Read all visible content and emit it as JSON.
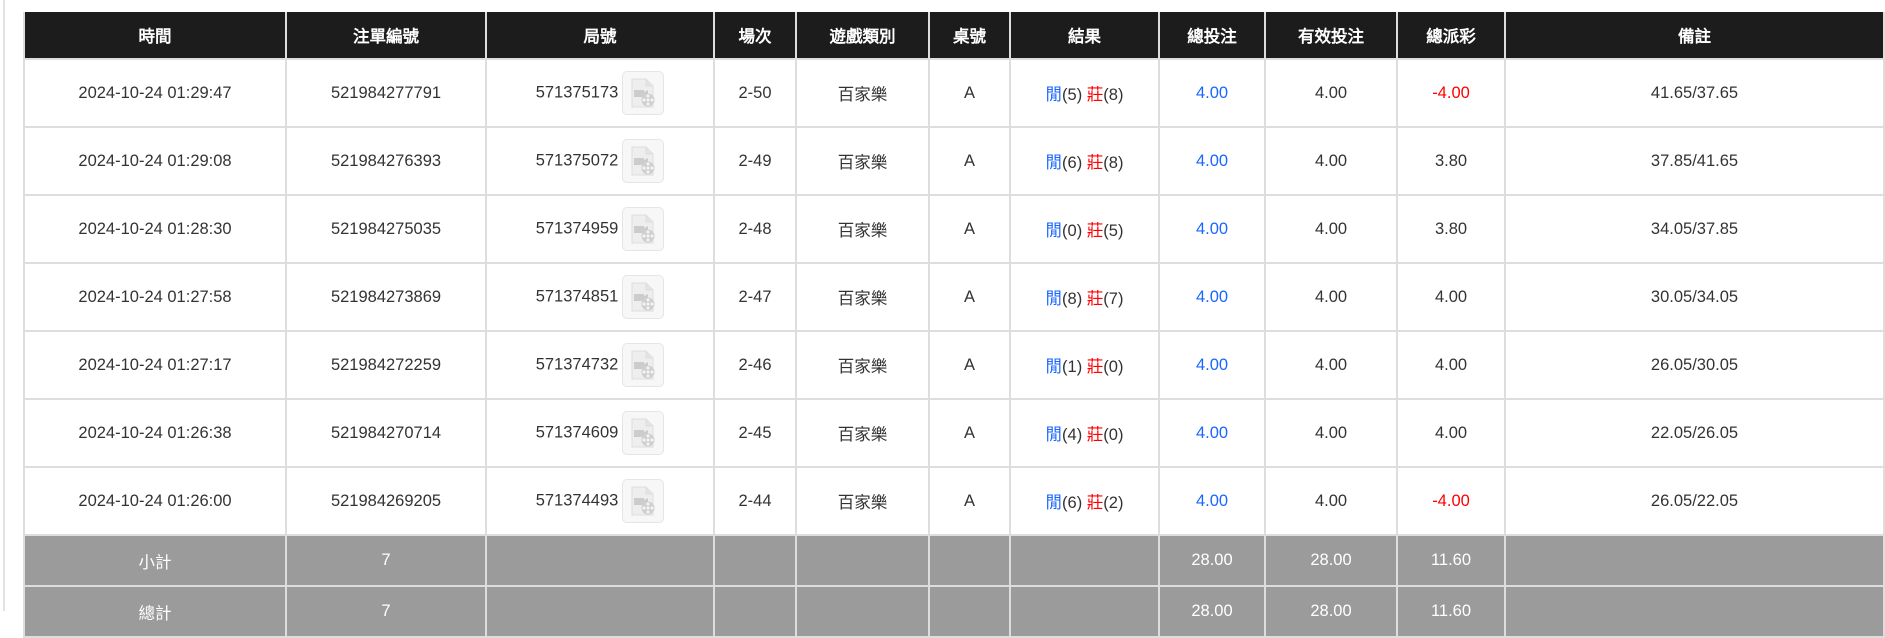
{
  "headers": [
    "時間",
    "注單編號",
    "局號",
    "場次",
    "遊戲類別",
    "桌號",
    "結果",
    "總投注",
    "有效投注",
    "總派彩",
    "備註"
  ],
  "rows": [
    {
      "time": "2024-10-24 01:29:47",
      "bet_id": "521984277791",
      "round": "571375173",
      "session": "2-50",
      "game": "百家樂",
      "table": "A",
      "player_label": "閒",
      "player_score": "(5)",
      "banker_label": "莊",
      "banker_score": "(8)",
      "total_bet": "4.00",
      "valid_bet": "4.00",
      "payout": "-4.00",
      "payout_negative": true,
      "note": "41.65/37.65"
    },
    {
      "time": "2024-10-24 01:29:08",
      "bet_id": "521984276393",
      "round": "571375072",
      "session": "2-49",
      "game": "百家樂",
      "table": "A",
      "player_label": "閒",
      "player_score": "(6)",
      "banker_label": "莊",
      "banker_score": "(8)",
      "total_bet": "4.00",
      "valid_bet": "4.00",
      "payout": "3.80",
      "payout_negative": false,
      "note": "37.85/41.65"
    },
    {
      "time": "2024-10-24 01:28:30",
      "bet_id": "521984275035",
      "round": "571374959",
      "session": "2-48",
      "game": "百家樂",
      "table": "A",
      "player_label": "閒",
      "player_score": "(0)",
      "banker_label": "莊",
      "banker_score": "(5)",
      "total_bet": "4.00",
      "valid_bet": "4.00",
      "payout": "3.80",
      "payout_negative": false,
      "note": "34.05/37.85"
    },
    {
      "time": "2024-10-24 01:27:58",
      "bet_id": "521984273869",
      "round": "571374851",
      "session": "2-47",
      "game": "百家樂",
      "table": "A",
      "player_label": "閒",
      "player_score": "(8)",
      "banker_label": "莊",
      "banker_score": "(7)",
      "total_bet": "4.00",
      "valid_bet": "4.00",
      "payout": "4.00",
      "payout_negative": false,
      "note": "30.05/34.05"
    },
    {
      "time": "2024-10-24 01:27:17",
      "bet_id": "521984272259",
      "round": "571374732",
      "session": "2-46",
      "game": "百家樂",
      "table": "A",
      "player_label": "閒",
      "player_score": "(1)",
      "banker_label": "莊",
      "banker_score": "(0)",
      "total_bet": "4.00",
      "valid_bet": "4.00",
      "payout": "4.00",
      "payout_negative": false,
      "note": "26.05/30.05"
    },
    {
      "time": "2024-10-24 01:26:38",
      "bet_id": "521984270714",
      "round": "571374609",
      "session": "2-45",
      "game": "百家樂",
      "table": "A",
      "player_label": "閒",
      "player_score": "(4)",
      "banker_label": "莊",
      "banker_score": "(0)",
      "total_bet": "4.00",
      "valid_bet": "4.00",
      "payout": "4.00",
      "payout_negative": false,
      "note": "22.05/26.05"
    },
    {
      "time": "2024-10-24 01:26:00",
      "bet_id": "521984269205",
      "round": "571374493",
      "session": "2-44",
      "game": "百家樂",
      "table": "A",
      "player_label": "閒",
      "player_score": "(6)",
      "banker_label": "莊",
      "banker_score": "(2)",
      "total_bet": "4.00",
      "valid_bet": "4.00",
      "payout": "-4.00",
      "payout_negative": true,
      "note": "26.05/22.05"
    }
  ],
  "subtotal": {
    "label": "小計",
    "count": "7",
    "total_bet": "28.00",
    "valid_bet": "28.00",
    "payout": "11.60"
  },
  "grandtotal": {
    "label": "總計",
    "count": "7",
    "total_bet": "28.00",
    "valid_bet": "28.00",
    "payout": "11.60"
  },
  "icons": {
    "replay": "video-file-icon"
  },
  "colors": {
    "header_bg": "#1c1c1c",
    "player": "#1a66ff",
    "banker": "#ff0000",
    "negative": "#ff0000",
    "total_bet": "#1a66ff",
    "summary_bg": "#9b9b9b"
  }
}
